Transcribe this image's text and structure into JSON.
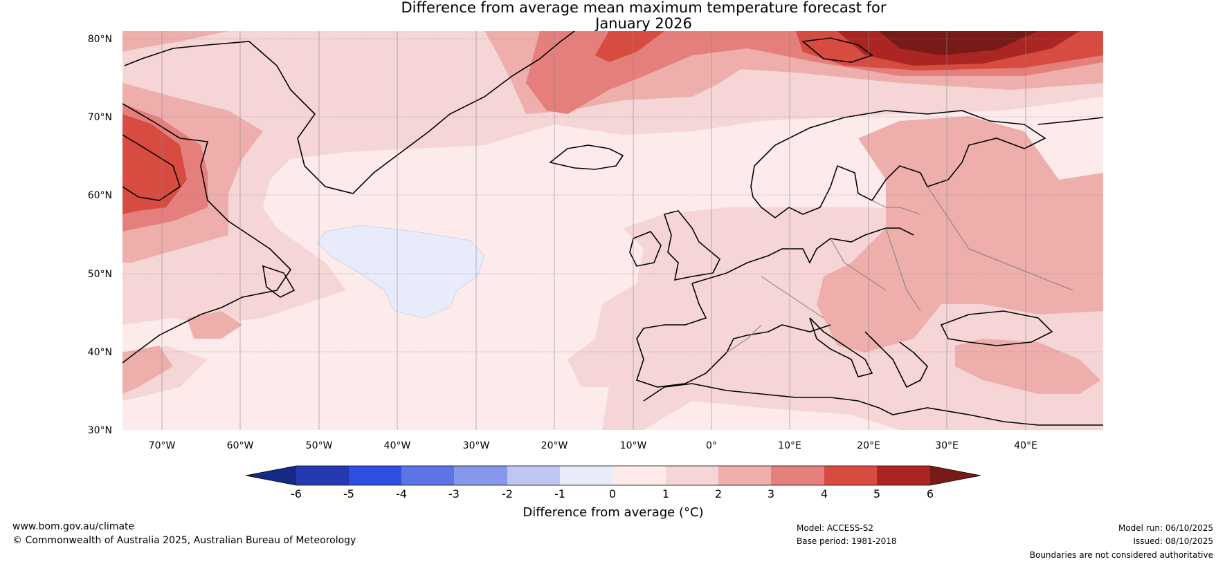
{
  "title": {
    "line1": "Difference from average mean maximum temperature forecast for",
    "line2": "January 2026"
  },
  "map": {
    "lat_labels": [
      "80°N",
      "70°N",
      "60°N",
      "50°N",
      "40°N",
      "30°N"
    ],
    "lon_labels": [
      "70°W",
      "60°W",
      "50°W",
      "40°W",
      "30°W",
      "20°W",
      "10°W",
      "0°",
      "10°E",
      "20°E",
      "30°E",
      "40°E"
    ]
  },
  "colorbar": {
    "label": "Difference from average (°C)",
    "ticks": [
      "-6",
      "-5",
      "-4",
      "-3",
      "-2",
      "-1",
      "0",
      "1",
      "2",
      "3",
      "4",
      "5",
      "6"
    ],
    "colors": [
      "#132a86",
      "#253ab0",
      "#2e4fe0",
      "#5d74e6",
      "#8798ec",
      "#bfc6f3",
      "#e8ebfa",
      "#fcebea",
      "#f5d5d5",
      "#eeaeac",
      "#e47f7b",
      "#d74b40",
      "#ab2622",
      "#781a16"
    ]
  },
  "footer": {
    "website": "www.bom.gov.au/climate",
    "copyright": "© Commonwealth of Australia 2025, Australian Bureau of Meteorology",
    "model": "Model: ACCESS-S2",
    "base_period": "Base period: 1981-2018",
    "model_run": "Model run: 06/10/2025",
    "issued": "Issued: 08/10/2025",
    "disclaimer": "Boundaries are not considered authoritative"
  }
}
